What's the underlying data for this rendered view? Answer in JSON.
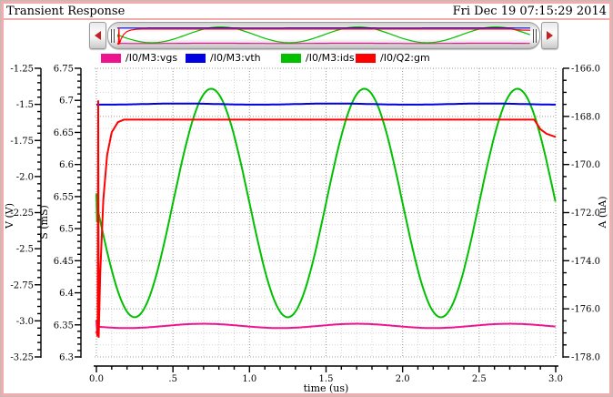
{
  "window": {
    "title": "Transient Response",
    "timestamp": "Fri Dec 19 07:15:29 2014"
  },
  "colors": {
    "window_border_pink": "#f2acac",
    "scroll_arrow_red": "#c32222",
    "axis_black": "#000000",
    "grid_major": "#9c9c9c",
    "grid_minor": "#d6d6d6"
  },
  "chart_data": {
    "type": "line",
    "x_axis": {
      "label": "time (us)",
      "min": 0,
      "max": 3,
      "major_step": 0.5,
      "minors_per_major": 4,
      "tick_labels": [
        "0.0",
        ".5",
        "1.0",
        "1.5",
        "2.0",
        "2.5",
        "3.0"
      ]
    },
    "y_axes": [
      {
        "id": "v",
        "label": "V (V)",
        "min": -3.25,
        "max": -1.25,
        "major_step": 0.25,
        "minors_per_major": 4,
        "tick_labels": [
          "-1.25",
          "-1.5",
          "-1.75",
          "-2.0",
          "-2.25",
          "-2.5",
          "-2.75",
          "-3.0",
          "-3.25"
        ]
      },
      {
        "id": "s",
        "label": "S (mS)",
        "min": 6.3,
        "max": 6.75,
        "major_step": 0.05,
        "minors_per_major": 4,
        "tick_labels": [
          "6.75",
          "6.7",
          "6.65",
          "6.6",
          "6.55",
          "6.5",
          "6.45",
          "6.4",
          "6.35",
          "6.3"
        ]
      },
      {
        "id": "a",
        "label": "A (uA)",
        "min": -178.0,
        "max": -166.0,
        "major_step": 2.0,
        "minors_per_major": 3,
        "tick_labels": [
          "-166.0",
          "-168.0",
          "-170.0",
          "-172.0",
          "-174.0",
          "-176.0",
          "-178.0"
        ]
      }
    ],
    "series": [
      {
        "name": "/I0/M3:vgs",
        "short": "vgs",
        "color": "#f0138f",
        "axis": "v",
        "model": {
          "kind": "sine",
          "mean": -3.035,
          "amplitude": 0.015,
          "period": 1,
          "phase_shift": 0.45
        },
        "start_glitch": [
          [
            0,
            -2.995
          ],
          [
            0.004,
            -3.075
          ],
          [
            0.008,
            -3.03
          ]
        ]
      },
      {
        "name": "/I0/M3:vth",
        "short": "vth",
        "color": "#0000e0",
        "axis": "v",
        "model": {
          "kind": "sine",
          "mean": -1.498,
          "amplitude": 0.004,
          "period": 1,
          "phase_shift": 0.3
        }
      },
      {
        "name": "/I0/M3:ids",
        "short": "ids",
        "color": "#00c000",
        "axis": "a",
        "model": {
          "kind": "sine",
          "mean": -171.6,
          "amplitude": -4.75,
          "period": 1,
          "phase_shift": 0
        },
        "start_glitch": [
          [
            0,
            -171.2
          ],
          [
            0.004,
            -172.4
          ],
          [
            0.008,
            -171.65
          ]
        ]
      },
      {
        "name": "/I0/Q2:gm",
        "short": "gm",
        "color": "#ff0000",
        "axis": "s",
        "points": [
          [
            0,
            6.34
          ],
          [
            0.008,
            6.332
          ],
          [
            0.012,
            6.7
          ],
          [
            0.015,
            6.33
          ],
          [
            0.025,
            6.43
          ],
          [
            0.045,
            6.545
          ],
          [
            0.07,
            6.615
          ],
          [
            0.1,
            6.65
          ],
          [
            0.14,
            6.666
          ],
          [
            0.18,
            6.67
          ],
          [
            2.86,
            6.67
          ],
          [
            2.9,
            6.655
          ],
          [
            2.94,
            6.648
          ],
          [
            3.0,
            6.643
          ]
        ]
      }
    ],
    "legend_position": "top",
    "grid": "dotted"
  }
}
